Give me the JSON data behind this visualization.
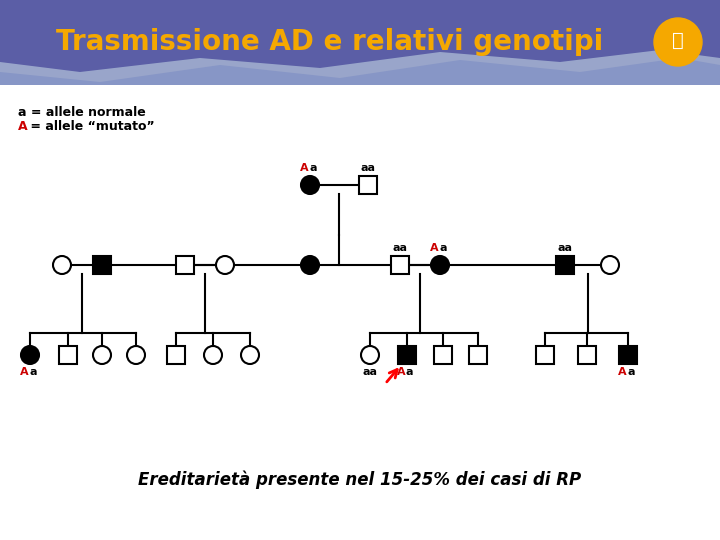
{
  "title": "Trasmissione AD e relativi genotipi",
  "title_color": "#F5A800",
  "title_bg_color": "#5B5EA6",
  "wave_color1": "#7B8CC4",
  "wave_color2": "#A0AECF",
  "body_bg": "#FFFFFF",
  "legend_text1": "a = allele normale",
  "legend_text2_A": "a",
  "red_color": "#CC0000",
  "black_color": "#000000",
  "bottom_text": "Ereditarietà presente nel 15-25% dei casi di RP",
  "symbol_size": 18,
  "line_width": 1.5
}
